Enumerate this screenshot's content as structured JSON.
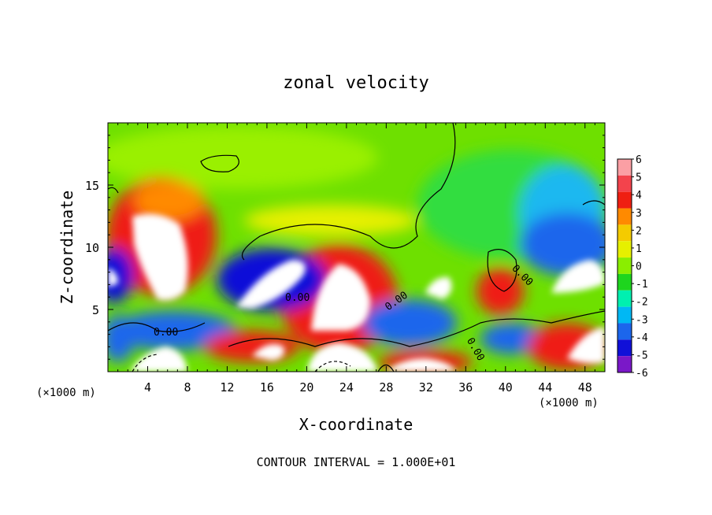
{
  "chart_data": {
    "type": "heatmap",
    "title": "zonal velocity",
    "xlabel": "X-coordinate",
    "ylabel": "Z-coordinate",
    "x_unit": "(×1000 m)",
    "y_unit": "(×1000 m)",
    "footer": "CONTOUR INTERVAL = 1.000E+01",
    "xlim": [
      0,
      50
    ],
    "ylim": [
      0,
      20
    ],
    "x_ticks": [
      "4",
      "8",
      "12",
      "16",
      "20",
      "24",
      "28",
      "32",
      "36",
      "40",
      "44",
      "48"
    ],
    "y_ticks": [
      "5",
      "10",
      "15"
    ],
    "colorbar": {
      "min": -6,
      "max": 6,
      "labels": [
        "6",
        "5",
        "4",
        "3",
        "2",
        "1",
        "0",
        "-1",
        "-2",
        "-3",
        "-4",
        "-5",
        "-6"
      ],
      "colors": [
        "#fb9fa4",
        "#f3434c",
        "#ef1f12",
        "#ff8a00",
        "#f4cb00",
        "#e6f000",
        "#8aee00",
        "#1ed51e",
        "#00f0b0",
        "#00b8f4",
        "#1c66ec",
        "#1010d8",
        "#7a18c8"
      ]
    },
    "contour_labels": [
      "0.00",
      "0.00",
      "0.00",
      "0.00",
      "0.00"
    ],
    "features": [
      {
        "kind": "max",
        "x": 6,
        "z": 9.5,
        "value": ">6"
      },
      {
        "kind": "max",
        "x": 23.5,
        "z": 6.5,
        "value": ">6"
      },
      {
        "kind": "max",
        "x": 20,
        "z": 2,
        "value": ">6"
      },
      {
        "kind": "max",
        "x": 36,
        "z": 1.5,
        "value": ">6"
      },
      {
        "kind": "max",
        "x": 46,
        "z": 2.5,
        "value": ">6"
      },
      {
        "kind": "min",
        "x": 16,
        "z": 8,
        "value": "<-6"
      },
      {
        "kind": "min",
        "x": 47.5,
        "z": 8,
        "value": "<-6"
      },
      {
        "kind": "min",
        "x": 34,
        "z": 7,
        "value": "<-6"
      },
      {
        "kind": "min",
        "x": 45.5,
        "z": 15,
        "value": "-3"
      }
    ]
  }
}
